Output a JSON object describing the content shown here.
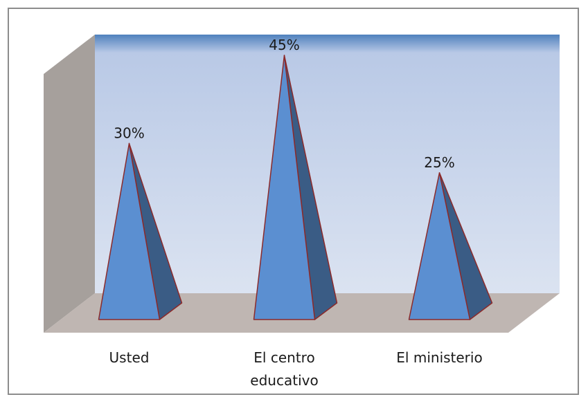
{
  "chart_data": {
    "type": "bar",
    "shape": "pyramid-3d",
    "categories": [
      "Usted",
      "El centro educativo",
      "El ministerio"
    ],
    "category_lines": [
      [
        "Usted"
      ],
      [
        "El centro",
        "educativo"
      ],
      [
        "El ministerio"
      ]
    ],
    "values": [
      30,
      45,
      25
    ],
    "data_labels": [
      "30%",
      "45%",
      "25%"
    ],
    "ylim": [
      0,
      45
    ],
    "grid": false,
    "legend": "none",
    "title": "",
    "xlabel": "",
    "ylabel": ""
  },
  "colors": {
    "frame": "#8c8c8c",
    "wall_top": "#4f81bd",
    "wall_fill": "#dbe3f1",
    "side_wall": "#a6a09c",
    "floor": "#bfb6b2",
    "pyramid_front": "#5b8fd1",
    "pyramid_side": "#3a5c85",
    "pyramid_outline": "#8b2a2a"
  }
}
